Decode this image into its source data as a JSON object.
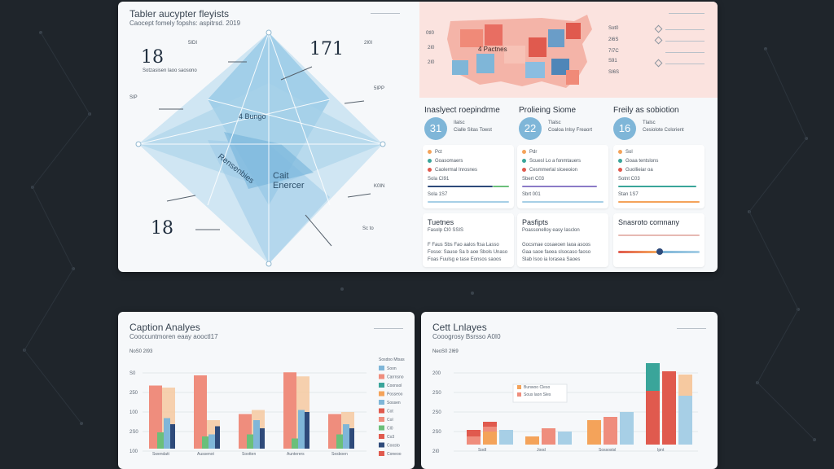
{
  "colors": {
    "background": "#1f252b",
    "panel": "#f6f8fa",
    "blue": "#7fb6d8",
    "lightblue": "#a7cfe6",
    "salmon": "#ef8d7d",
    "red": "#e05a4e",
    "orange": "#f4a35a",
    "peach": "#f6c9a0",
    "teal": "#3aa59a",
    "green": "#6bbf7a",
    "navy": "#2e4a7a",
    "purple": "#8b7ac7"
  },
  "diagram": {
    "title": "Tabler aucypter fleyists",
    "subtitle": "Caocept fomely fopshs: aspitrsd. 2019",
    "big_left_top": "18",
    "big_left_bottom": "18",
    "big_center": "171",
    "center_label": "4 Bungo",
    "diag_label": "Rensenbies",
    "lower_label_line1": "Cait",
    "lower_label_line2": "Enercer",
    "side_labels": [
      "5IDI",
      "SIP",
      "2I0I",
      "5IPP",
      "K0IN",
      "Sc to"
    ]
  },
  "map": {
    "legend": [
      "0tI0",
      "2I0",
      "2I0"
    ],
    "label": "4 Pactnes",
    "right_items": [
      "Sot0",
      "2I6S",
      "7I7C",
      "S91",
      "SI6S"
    ]
  },
  "stats": [
    {
      "title": "Inaslyect roepindrme",
      "value": "31",
      "caption": "Cialle Sitas Towst"
    },
    {
      "title": "Prolieing Siome",
      "value": "22",
      "caption": "Coaloa Inlsy Freaort"
    },
    {
      "title": "Freily as sobiotion",
      "value": "16",
      "caption": "Cesiolote Colorient"
    }
  ],
  "list_cards": [
    {
      "rows": [
        "Pct",
        "Goasomaers",
        "Caolermal Inrosnes",
        "Sola CI91",
        "Sola 1S7"
      ]
    },
    {
      "rows": [
        "Pdr",
        "Scuesl Lo a fonmtauers",
        "Cesmmerlal slceeoion",
        "Sbert C03",
        "Sbrt 001"
      ]
    },
    {
      "rows": [
        "Sol",
        "Goaa tentslons",
        "Guollieiar oa",
        "Sotnt C03",
        "Stan 1S7"
      ]
    }
  ],
  "text_cards": [
    {
      "title": "Tuetnes",
      "subtitle": "Fasolp Cl0 SSIS",
      "lines": [
        "F Faus Sbs Fao aalos ftsa Lasso",
        "Fosse: Sause Sa b aoe Sbols Unaso",
        "Foas Fuulsg e tase Eonsos saoos"
      ]
    },
    {
      "title": "Pasfipts",
      "subtitle": "Poassonelloy easy Iasclon",
      "lines": [
        "Gocsmae cosaeoen laoa asoos",
        "Gaa saoe faoea slsocaso faoso",
        "Slab Isoo ia lorasea Saoes"
      ]
    },
    {
      "title": "Snasroto comnany",
      "subtitle": "",
      "lines": []
    }
  ],
  "chart_data": [
    {
      "type": "bar",
      "title": "Caption Analyes",
      "subtitle": "Cooccuntmoren eaay aooctl17",
      "ylabel": "NoS0 2I93",
      "y_ticks": [
        "S0",
        "250",
        "100",
        "2S0",
        "100"
      ],
      "categories": [
        "Swendatt",
        "Aussenot",
        "Sootten",
        "Aunterers",
        "Sesboen"
      ],
      "series": [
        {
          "color": "#ef8d7d",
          "values": [
            62,
            72,
            34,
            75,
            34
          ]
        },
        {
          "color": "#f6c9a0",
          "values": [
            60,
            28,
            38,
            71,
            36
          ]
        },
        {
          "color": "#7fb6d8",
          "values": [
            30,
            14,
            28,
            38,
            24
          ]
        },
        {
          "color": "#2e4a7a",
          "values": [
            24,
            22,
            20,
            36,
            20
          ]
        },
        {
          "color": "#6bbf7a",
          "values": [
            16,
            12,
            14,
            10,
            14
          ]
        }
      ],
      "stack_hint": "mixed",
      "legend": [
        "Sosdoo Mtsas",
        "Soon",
        "Carrnsno",
        "Coonsol",
        "Posseoo",
        "Sossen",
        "Cot",
        "CoI",
        "Cl0",
        "Co3",
        "Coosto",
        "Coneoo"
      ],
      "legend_colors": [
        "#f6c9a0",
        "#7fb6d8",
        "#ef8d7d",
        "#3aa59a",
        "#f4a35a",
        "#7fb6d8",
        "#e05a4e",
        "#ef8d7d",
        "#6bbf7a",
        "#e05a4e",
        "#2e4a7a",
        "#e05a4e"
      ]
    },
    {
      "type": "bar",
      "title": "Cett Lnlayes",
      "subtitle": "Cooogrosy Bsrsso A0I0",
      "ylabel": "NeoS0 2I69",
      "y_ticks": [
        "200",
        "2S0",
        "2S0",
        "2S0",
        "2I0"
      ],
      "categories": [
        "Sodl",
        "Jood",
        "Sossostsl",
        "Ipnt"
      ],
      "series": [
        {
          "color": "#ef8d7d",
          "values": [
            [
              10,
              16
            ],
            [
              8,
              14
            ],
            [
              22,
              26
            ],
            [
              100,
              104
            ]
          ]
        },
        {
          "color": "#f4a35a",
          "values": [
            [
              20,
              22
            ],
            [
              12,
              14
            ],
            [
              30,
              26
            ],
            [
              104,
              28
            ]
          ]
        },
        {
          "color": "#a7cfe6",
          "values": [
            [
              18
            ],
            [
              16
            ],
            [
              40
            ],
            [
              96
            ]
          ]
        }
      ],
      "legend": [
        "Bunwoo Cleso",
        "Sous laon Sles"
      ],
      "legend_colors": [
        "#f4a35a",
        "#ef8d7d"
      ]
    }
  ]
}
